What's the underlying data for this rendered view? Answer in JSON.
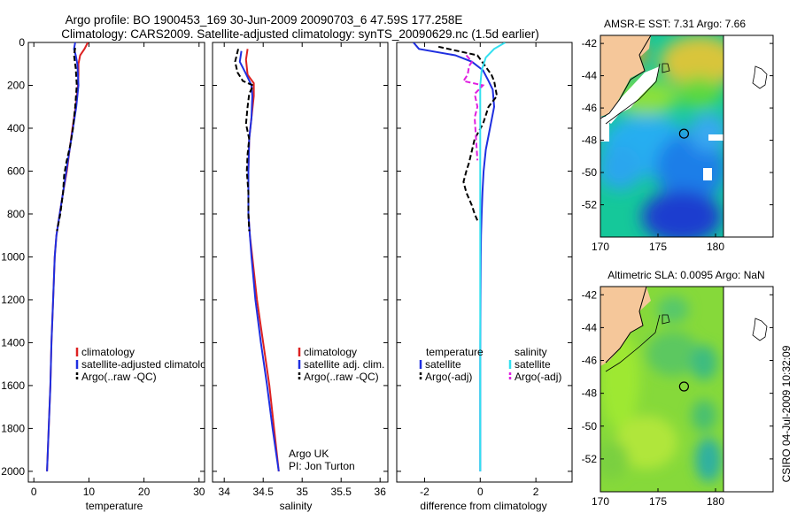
{
  "title_line1": "Argo profile: BO 1900453_169 30-Jun-2009 20090703_6 47.59S 177.258E",
  "title_line2": "Climatology: CARS2009. Satellite-adjusted climatology: synTS_20090629.nc (1.5d earlier)",
  "credit_text": "CSIRO 04-Jul-2009 10:32:09",
  "colors": {
    "red": "#dd2222",
    "blue": "#1f2fe0",
    "black": "#000000",
    "cyan": "#33e0f0",
    "magenta": "#e020e0",
    "land": "#f5c79a"
  },
  "chart_data": [
    {
      "type": "line",
      "xlabel": "temperature",
      "ylabel": "",
      "xlim": [
        -1,
        31
      ],
      "ylim": [
        2050,
        0
      ],
      "xticks": [
        "0",
        "10",
        "20",
        "30"
      ],
      "yticks": [
        "0",
        "200",
        "400",
        "600",
        "800",
        "1000",
        "1200",
        "1400",
        "1600",
        "1800",
        "2000"
      ],
      "legend": [
        "climatology",
        "satellite-adjusted climatology",
        "Argo(..raw -QC)"
      ],
      "series": [
        {
          "name": "climatology",
          "color": "red",
          "points": [
            [
              9.8,
              0
            ],
            [
              9.2,
              30
            ],
            [
              8.4,
              60
            ],
            [
              8.1,
              100
            ],
            [
              8.1,
              150
            ],
            [
              8.0,
              200
            ],
            [
              7.6,
              300
            ],
            [
              7.0,
              400
            ],
            [
              6.5,
              500
            ],
            [
              6.0,
              600
            ],
            [
              5.3,
              700
            ],
            [
              4.7,
              800
            ],
            [
              4.1,
              900
            ],
            [
              3.8,
              1000
            ],
            [
              3.5,
              1200
            ],
            [
              3.2,
              1400
            ],
            [
              3.0,
              1600
            ],
            [
              2.7,
              1800
            ],
            [
              2.4,
              2000
            ]
          ]
        },
        {
          "name": "satellite-adjusted climatology",
          "color": "blue",
          "points": [
            [
              7.5,
              0
            ],
            [
              7.3,
              30
            ],
            [
              7.6,
              60
            ],
            [
              7.9,
              100
            ],
            [
              8.0,
              150
            ],
            [
              8.1,
              200
            ],
            [
              7.7,
              300
            ],
            [
              7.1,
              400
            ],
            [
              6.5,
              500
            ],
            [
              5.9,
              600
            ],
            [
              5.3,
              700
            ],
            [
              4.7,
              800
            ],
            [
              4.1,
              900
            ],
            [
              3.8,
              1000
            ],
            [
              3.5,
              1200
            ],
            [
              3.2,
              1400
            ],
            [
              3.0,
              1600
            ],
            [
              2.7,
              1800
            ],
            [
              2.4,
              2000
            ]
          ]
        },
        {
          "name": "Argo(..raw -QC)",
          "color": "black",
          "dashed": true,
          "points": [
            [
              7.5,
              25
            ],
            [
              7.3,
              60
            ],
            [
              7.6,
              120
            ],
            [
              7.8,
              200
            ],
            [
              7.5,
              300
            ],
            [
              7.1,
              400
            ],
            [
              6.6,
              480
            ],
            [
              5.9,
              560
            ],
            [
              5.5,
              620
            ],
            [
              5.3,
              700
            ],
            [
              4.8,
              800
            ],
            [
              4.2,
              880
            ]
          ]
        }
      ]
    },
    {
      "type": "line",
      "xlabel": "salinity",
      "ylabel": "",
      "xlim": [
        33.85,
        36.1
      ],
      "ylim": [
        2050,
        0
      ],
      "xticks": [
        "34",
        "34.5",
        "35",
        "35.5",
        "36"
      ],
      "legend": [
        "climatology",
        "satellite adj. clim.",
        "Argo(..raw -QC)"
      ],
      "annotation": [
        "Argo UK",
        "PI: Jon Turton"
      ],
      "series": [
        {
          "name": "climatology",
          "color": "red",
          "points": [
            [
              34.3,
              30
            ],
            [
              34.28,
              80
            ],
            [
              34.3,
              150
            ],
            [
              34.38,
              190
            ],
            [
              34.38,
              250
            ],
            [
              34.35,
              350
            ],
            [
              34.32,
              450
            ],
            [
              34.31,
              600
            ],
            [
              34.31,
              800
            ],
            [
              34.33,
              900
            ],
            [
              34.36,
              1000
            ],
            [
              34.42,
              1200
            ],
            [
              34.5,
              1400
            ],
            [
              34.58,
              1600
            ],
            [
              34.64,
              1800
            ],
            [
              34.7,
              2000
            ]
          ]
        },
        {
          "name": "satellite adj. clim.",
          "color": "blue",
          "points": [
            [
              34.22,
              40
            ],
            [
              34.2,
              90
            ],
            [
              34.27,
              140
            ],
            [
              34.35,
              200
            ],
            [
              34.36,
              250
            ],
            [
              34.35,
              350
            ],
            [
              34.32,
              450
            ],
            [
              34.31,
              600
            ],
            [
              34.31,
              800
            ],
            [
              34.33,
              900
            ],
            [
              34.35,
              1000
            ],
            [
              34.4,
              1200
            ],
            [
              34.47,
              1400
            ],
            [
              34.55,
              1600
            ],
            [
              34.62,
              1800
            ],
            [
              34.7,
              2000
            ]
          ]
        },
        {
          "name": "Argo(..raw -QC)",
          "color": "black",
          "dashed": true,
          "points": [
            [
              34.18,
              30
            ],
            [
              34.14,
              90
            ],
            [
              34.17,
              140
            ],
            [
              34.24,
              180
            ],
            [
              34.37,
              200
            ],
            [
              34.32,
              240
            ],
            [
              34.3,
              300
            ],
            [
              34.28,
              380
            ],
            [
              34.32,
              450
            ],
            [
              34.3,
              520
            ],
            [
              34.29,
              600
            ],
            [
              34.31,
              700
            ],
            [
              34.31,
              800
            ],
            [
              34.32,
              880
            ]
          ]
        }
      ]
    },
    {
      "type": "line",
      "xlabel": "difference from climatology",
      "ylabel": "",
      "xlim": [
        -3,
        3.3
      ],
      "ylim": [
        2050,
        0
      ],
      "xticks": [
        "-2",
        "0",
        "2"
      ],
      "legend_titles": [
        "temperature",
        "salinity"
      ],
      "legend": [
        "satellite",
        "Argo(-adj)",
        "satellite",
        "Argo(-adj)"
      ],
      "series": [
        {
          "name": "temperature satellite",
          "color": "blue",
          "points": [
            [
              -2.4,
              0
            ],
            [
              -2.2,
              30
            ],
            [
              -0.9,
              60
            ],
            [
              -0.3,
              90
            ],
            [
              0.1,
              130
            ],
            [
              0.3,
              180
            ],
            [
              0.45,
              220
            ],
            [
              0.5,
              300
            ],
            [
              0.35,
              400
            ],
            [
              0.2,
              500
            ],
            [
              0.12,
              600
            ],
            [
              0.08,
              700
            ],
            [
              0.05,
              800
            ],
            [
              0.03,
              900
            ],
            [
              0.02,
              1000
            ],
            [
              0.01,
              1200
            ],
            [
              0,
              1500
            ],
            [
              0,
              2000
            ]
          ]
        },
        {
          "name": "temperature Argo(-adj)",
          "color": "black",
          "dashed": true,
          "points": [
            [
              -1.5,
              20
            ],
            [
              -0.8,
              40
            ],
            [
              -0.1,
              60
            ],
            [
              0.4,
              150
            ],
            [
              0.5,
              180
            ],
            [
              0.6,
              250
            ],
            [
              0.3,
              300
            ],
            [
              0.1,
              380
            ],
            [
              -0.2,
              450
            ],
            [
              -0.4,
              560
            ],
            [
              -0.5,
              600
            ],
            [
              -0.6,
              650
            ],
            [
              -0.5,
              700
            ],
            [
              -0.3,
              760
            ],
            [
              -0.2,
              800
            ],
            [
              -0.1,
              830
            ]
          ]
        },
        {
          "name": "salinity satellite",
          "color": "cyan",
          "points": [
            [
              0.9,
              0
            ],
            [
              0.5,
              30
            ],
            [
              0.2,
              70
            ],
            [
              0.05,
              130
            ],
            [
              0,
              200
            ],
            [
              0,
              300
            ],
            [
              0,
              400
            ],
            [
              0,
              600
            ],
            [
              0,
              1000
            ],
            [
              0,
              1500
            ],
            [
              0,
              2000
            ]
          ]
        },
        {
          "name": "salinity Argo(-adj)",
          "color": "magenta",
          "dashed": true,
          "points": [
            [
              -0.5,
              60
            ],
            [
              -0.3,
              90
            ],
            [
              -0.4,
              110
            ],
            [
              -0.45,
              150
            ],
            [
              -0.6,
              180
            ],
            [
              0.1,
              200
            ],
            [
              -0.2,
              240
            ],
            [
              -0.1,
              300
            ],
            [
              -0.2,
              350
            ],
            [
              -0.15,
              450
            ],
            [
              -0.1,
              550
            ]
          ]
        }
      ]
    },
    {
      "type": "heatmap",
      "title": "AMSR-E SST: 7.31 Argo: 7.66",
      "xlim": [
        170,
        185
      ],
      "ylim": [
        -54,
        -41.5
      ],
      "xticks": [
        "170",
        "175",
        "180"
      ],
      "yticks": [
        "-42",
        "-44",
        "-46",
        "-48",
        "-50",
        "-52"
      ],
      "argo_position": [
        177.258,
        -47.59
      ]
    },
    {
      "type": "heatmap",
      "title": "Altimetric SLA: 0.0095 Argo: NaN",
      "xlim": [
        170,
        185
      ],
      "ylim": [
        -54,
        -41.5
      ],
      "xticks": [
        "170",
        "175",
        "180"
      ],
      "yticks": [
        "-42",
        "-44",
        "-46",
        "-48",
        "-50",
        "-52"
      ],
      "argo_position": [
        177.258,
        -47.59
      ]
    }
  ]
}
